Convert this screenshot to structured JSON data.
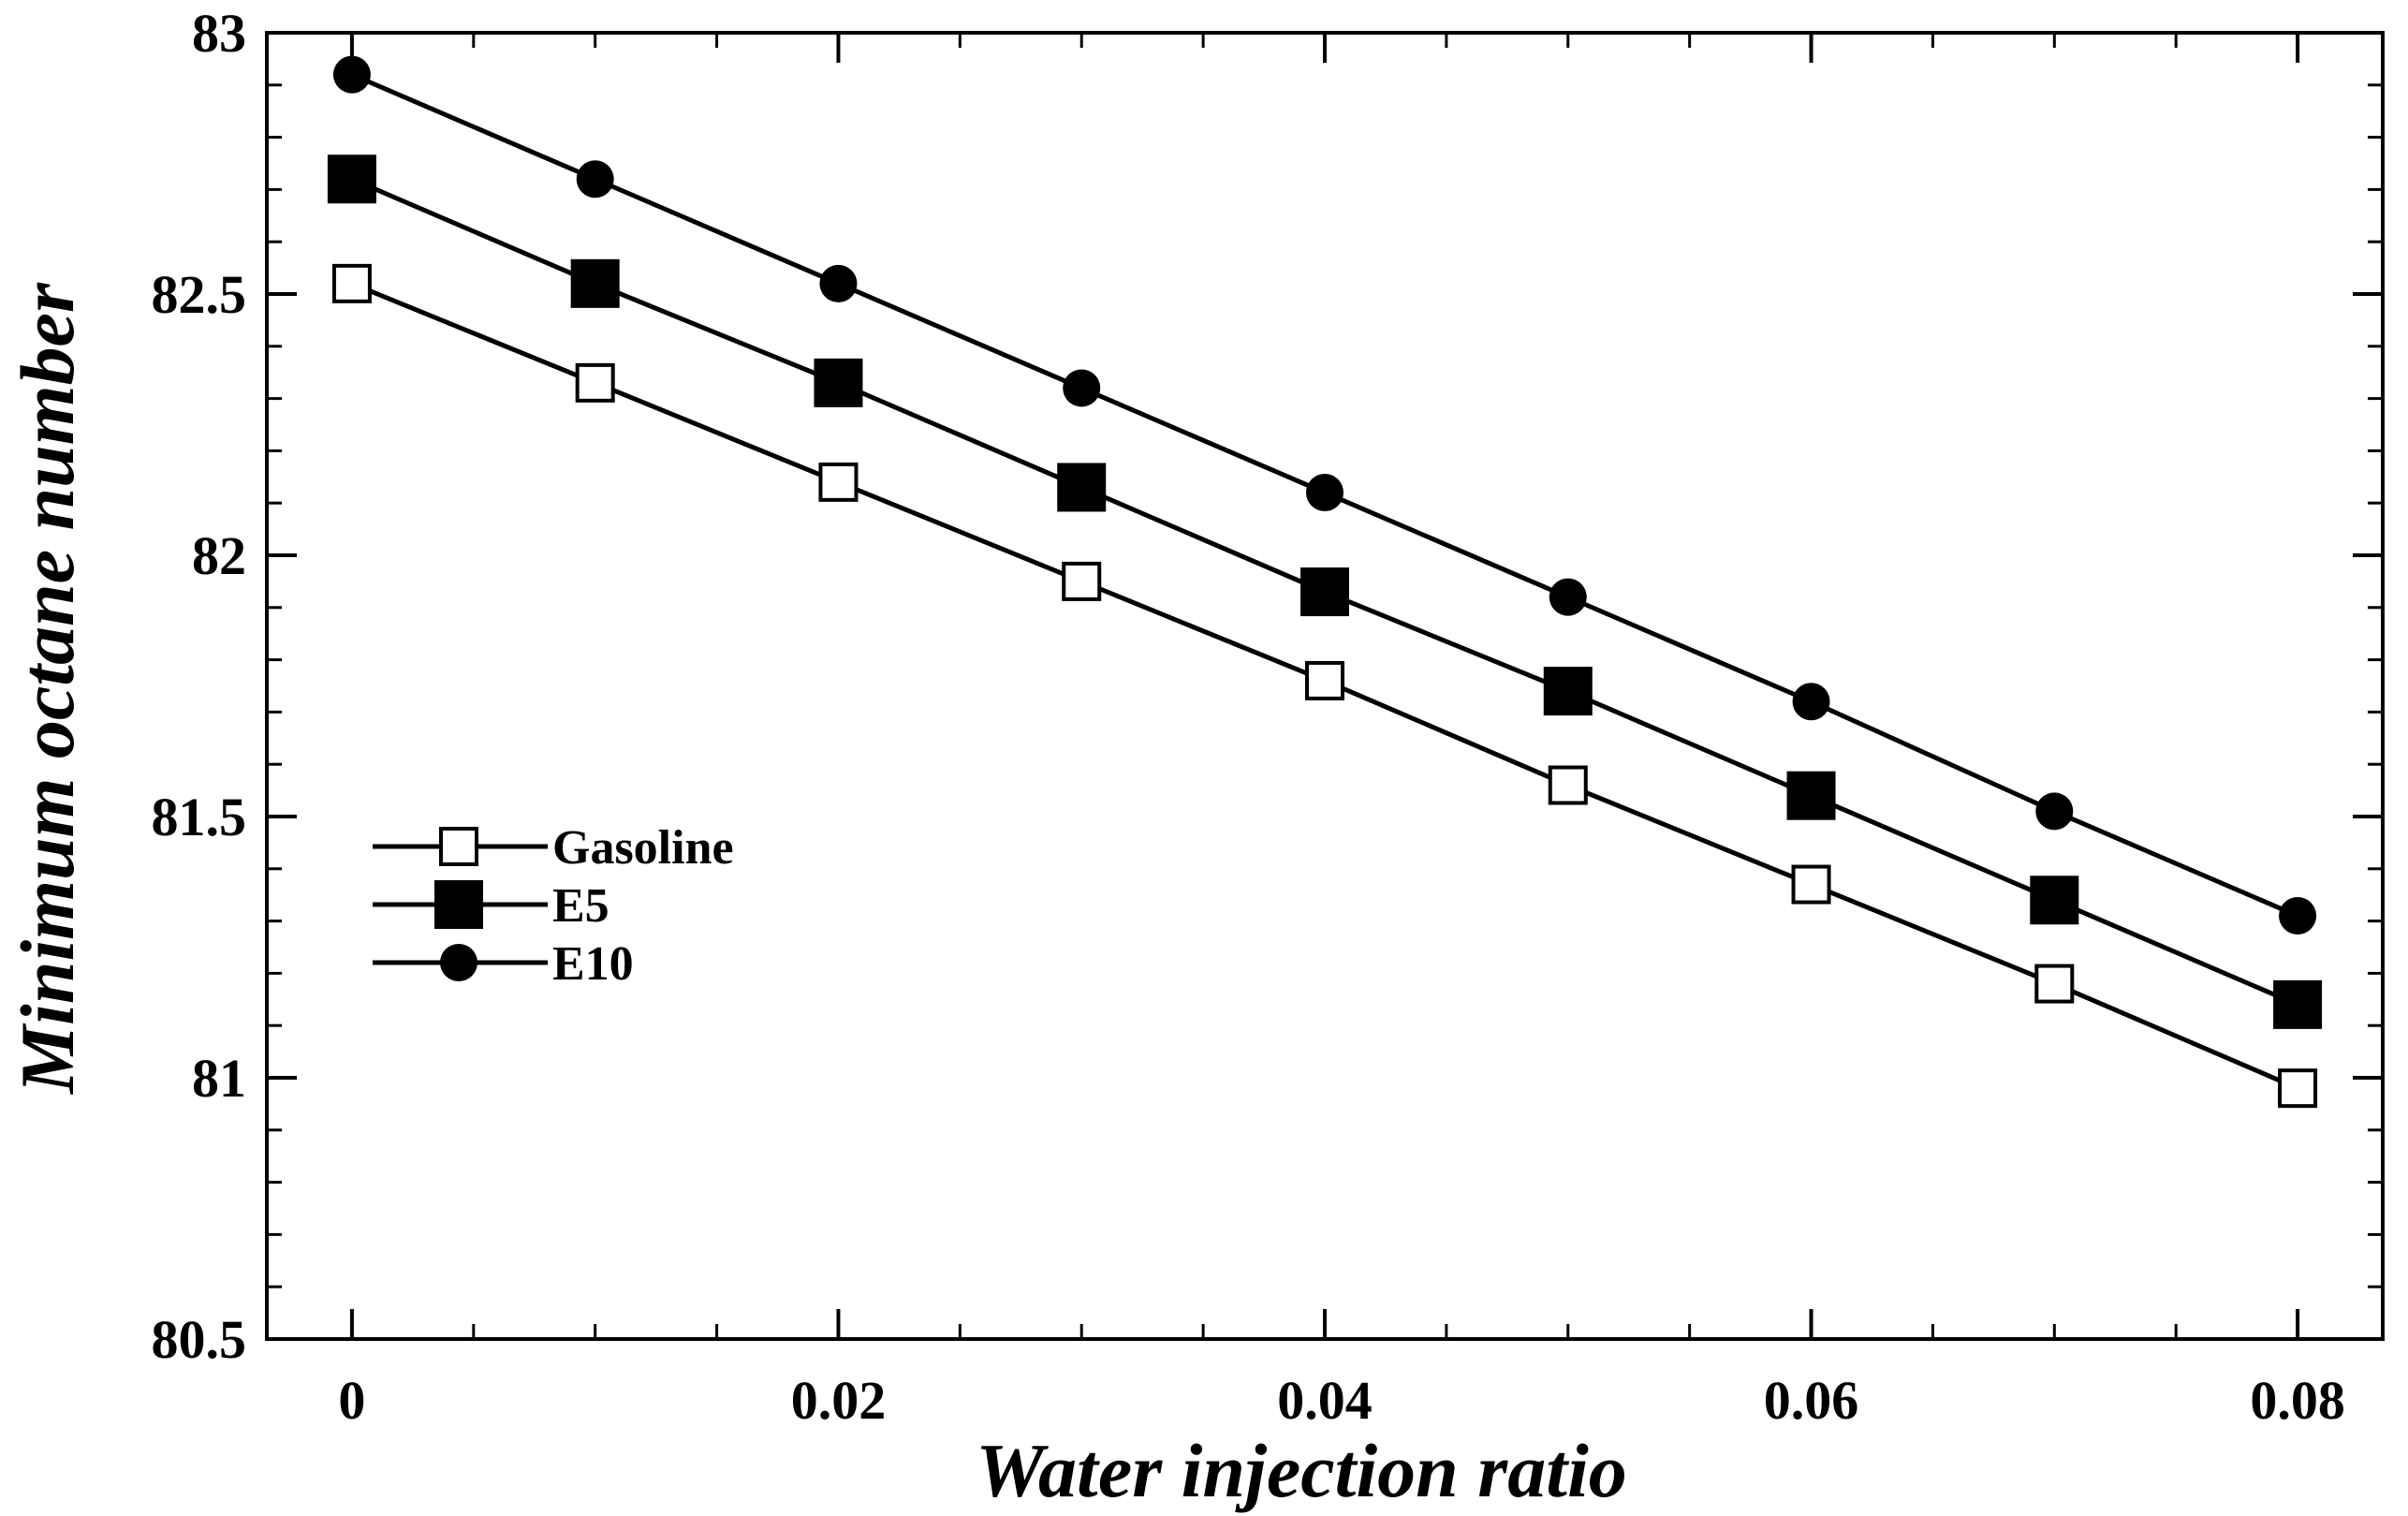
{
  "chart_data": {
    "type": "line",
    "title": "",
    "xlabel": "Water injection ratio",
    "ylabel": "Minimum octane number",
    "xlim": [
      -0.0035,
      0.0835
    ],
    "ylim": [
      80.5,
      83.0
    ],
    "xticks": [
      0,
      0.02,
      0.04,
      0.06,
      0.08
    ],
    "xtick_labels": [
      "0",
      "0.02",
      "0.04",
      "0.06",
      "0.08"
    ],
    "yticks": [
      80.5,
      81.0,
      81.5,
      82.0,
      82.5,
      83.0
    ],
    "ytick_labels": [
      "80.5",
      "81",
      "81.5",
      "82",
      "82.5",
      "83"
    ],
    "grid": false,
    "legend_position": "left-middle",
    "x": [
      0,
      0.01,
      0.02,
      0.03,
      0.04,
      0.05,
      0.06,
      0.07,
      0.08
    ],
    "series": [
      {
        "name": "Gasoline",
        "marker": "open-square",
        "values": [
          82.52,
          82.33,
          82.14,
          81.95,
          81.76,
          81.56,
          81.37,
          81.18,
          80.98
        ]
      },
      {
        "name": "E5",
        "marker": "filled-square",
        "values": [
          82.72,
          82.52,
          82.33,
          82.13,
          81.93,
          81.74,
          81.54,
          81.34,
          81.14
        ]
      },
      {
        "name": "E10",
        "marker": "filled-circle",
        "values": [
          82.92,
          82.72,
          82.52,
          82.32,
          82.12,
          81.92,
          81.72,
          81.51,
          81.31
        ]
      }
    ]
  }
}
